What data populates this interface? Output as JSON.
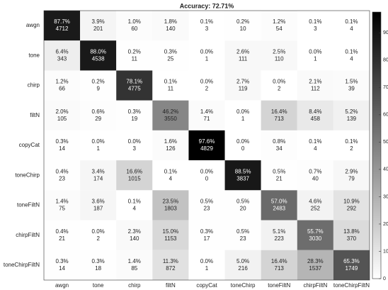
{
  "chart_data": {
    "type": "heatmap",
    "title": "Accuracy: 72.71%",
    "x_categories": [
      "awgn",
      "tone",
      "chirp",
      "filtN",
      "copyCat",
      "toneChirp",
      "toneFiltN",
      "chirpFiltN",
      "toneChirpFiltN"
    ],
    "y_categories": [
      "awgn",
      "tone",
      "chirp",
      "filtN",
      "copyCat",
      "toneChirp",
      "toneFiltN",
      "chirpFiltN",
      "toneChirpFiltN"
    ],
    "values": [
      [
        87.7,
        3.9,
        1.0,
        1.8,
        0.1,
        0.2,
        1.2,
        0.1,
        0.1
      ],
      [
        6.4,
        88.0,
        0.2,
        0.3,
        0.0,
        2.6,
        2.5,
        0.0,
        0.1
      ],
      [
        1.2,
        0.2,
        78.1,
        0.1,
        0.0,
        2.7,
        0.0,
        2.1,
        1.5
      ],
      [
        2.0,
        0.6,
        0.3,
        46.2,
        1.4,
        0.0,
        16.4,
        8.4,
        5.2
      ],
      [
        0.3,
        0.0,
        0.0,
        1.6,
        97.6,
        0.0,
        0.8,
        0.1,
        0.1
      ],
      [
        0.4,
        3.4,
        16.6,
        0.1,
        0.0,
        88.5,
        0.5,
        0.7,
        2.9
      ],
      [
        1.4,
        3.6,
        0.1,
        23.5,
        0.5,
        0.5,
        57.0,
        4.6,
        10.9
      ],
      [
        0.4,
        0.0,
        2.3,
        15.0,
        0.3,
        0.5,
        5.1,
        55.7,
        13.8
      ],
      [
        0.3,
        0.3,
        1.4,
        11.3,
        0.0,
        5.0,
        16.4,
        28.3,
        65.3
      ]
    ],
    "value_labels": [
      [
        "87.7%",
        "3.9%",
        "1.0%",
        "1.8%",
        "0.1%",
        "0.2%",
        "1.2%",
        "0.1%",
        "0.1%"
      ],
      [
        "6.4%",
        "88.0%",
        "0.2%",
        "0.3%",
        "0.0%",
        "2.6%",
        "2.5%",
        "0.0%",
        "0.1%"
      ],
      [
        "1.2%",
        "0.2%",
        "78.1%",
        "0.1%",
        "0.0%",
        "2.7%",
        "0.0%",
        "2.1%",
        "1.5%"
      ],
      [
        "2.0%",
        "0.6%",
        "0.3%",
        "46.2%",
        "1.4%",
        "0.0%",
        "16.4%",
        "8.4%",
        "5.2%"
      ],
      [
        "0.3%",
        "0.0%",
        "0.0%",
        "1.6%",
        "97.6%",
        "0.0%",
        "0.8%",
        "0.1%",
        "0.1%"
      ],
      [
        "0.4%",
        "3.4%",
        "16.6%",
        "0.1%",
        "0.0%",
        "88.5%",
        "0.5%",
        "0.7%",
        "2.9%"
      ],
      [
        "1.4%",
        "3.6%",
        "0.1%",
        "23.5%",
        "0.5%",
        "0.5%",
        "57.0%",
        "4.6%",
        "10.9%"
      ],
      [
        "0.4%",
        "0.0%",
        "2.3%",
        "15.0%",
        "0.3%",
        "0.5%",
        "5.1%",
        "55.7%",
        "13.8%"
      ],
      [
        "0.3%",
        "0.3%",
        "1.4%",
        "11.3%",
        "0.0%",
        "5.0%",
        "16.4%",
        "28.3%",
        "65.3%"
      ]
    ],
    "counts": [
      [
        4712,
        201,
        60,
        140,
        3,
        10,
        54,
        3,
        4
      ],
      [
        343,
        4538,
        11,
        25,
        1,
        111,
        110,
        1,
        4
      ],
      [
        66,
        9,
        4775,
        11,
        2,
        119,
        2,
        112,
        39
      ],
      [
        105,
        29,
        19,
        3550,
        71,
        1,
        713,
        458,
        139
      ],
      [
        14,
        1,
        3,
        126,
        4829,
        0,
        34,
        4,
        2
      ],
      [
        23,
        174,
        1015,
        4,
        0,
        3837,
        21,
        40,
        79
      ],
      [
        75,
        187,
        4,
        1803,
        23,
        20,
        2483,
        252,
        292
      ],
      [
        21,
        2,
        140,
        1153,
        17,
        23,
        223,
        3030,
        370
      ],
      [
        14,
        18,
        85,
        872,
        1,
        216,
        713,
        1537,
        1749
      ]
    ],
    "clim": [
      0,
      97.6
    ],
    "cticks": [
      0,
      10,
      20,
      30,
      40,
      50,
      60,
      70,
      80,
      90
    ],
    "colormap": "gray"
  }
}
